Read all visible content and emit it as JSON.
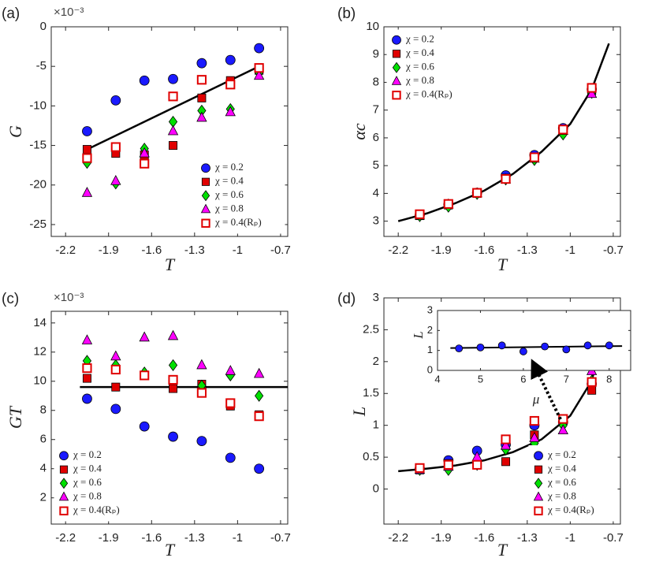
{
  "chart_data": [
    {
      "type": "scatter",
      "label": "(a)",
      "y_multiplier": "×10⁻³",
      "xlabel": "T",
      "ylabel": "G",
      "xlim": [
        -2.3,
        -0.65
      ],
      "ylim": [
        -26.5,
        0
      ],
      "xticks": [
        -2.2,
        -1.9,
        -1.6,
        -1.3,
        -1,
        -0.7
      ],
      "yticks": [
        0,
        -5,
        -10,
        -15,
        -20,
        -25
      ],
      "legend": "lower right",
      "x": [
        -2.05,
        -1.85,
        -1.65,
        -1.45,
        -1.25,
        -1.05,
        -0.85
      ],
      "series": [
        {
          "name": "χ = 0.2",
          "color": "#1a1aff",
          "marker": "o",
          "values": [
            -13.2,
            -9.3,
            -6.8,
            -6.6,
            -4.6,
            -4.2,
            -2.7
          ]
        },
        {
          "name": "χ = 0.4",
          "color": "#e00000",
          "marker": "s",
          "values": [
            -15.5,
            -16.0,
            -16.2,
            -15.0,
            -9.0,
            -6.8,
            -5.5
          ]
        },
        {
          "name": "χ = 0.6",
          "color": "#00e000",
          "marker": "d",
          "values": [
            -17.2,
            -19.8,
            -15.4,
            -12.0,
            -10.6,
            -10.4,
            -5.8
          ]
        },
        {
          "name": "χ = 0.8",
          "color": "#ff00ff",
          "marker": "^",
          "values": [
            -21.0,
            -19.5,
            -16.0,
            -13.2,
            -11.5,
            -10.8,
            -6.2
          ]
        },
        {
          "name": "χ = 0.4(Rₚ)",
          "color": "#e00000",
          "marker": "s",
          "filled": false,
          "values": [
            -16.6,
            -15.2,
            -17.3,
            -8.8,
            -6.7,
            -7.3,
            -5.2
          ]
        }
      ],
      "fit": {
        "x": [
          -2.05,
          -0.85
        ],
        "values": [
          -15.5,
          -5.0
        ]
      }
    },
    {
      "type": "scatter",
      "label": "(b)",
      "xlabel": "T",
      "ylabel": "αc",
      "xlim": [
        -2.3,
        -0.65
      ],
      "ylim": [
        2.45,
        10
      ],
      "xticks": [
        -2.2,
        -1.9,
        -1.6,
        -1.3,
        -1,
        -0.7
      ],
      "yticks": [
        3,
        4,
        5,
        6,
        7,
        8,
        9,
        10
      ],
      "legend": "upper left",
      "x": [
        -2.05,
        -1.85,
        -1.65,
        -1.45,
        -1.25,
        -1.05,
        -0.85
      ],
      "series": [
        {
          "name": "χ = 0.2",
          "color": "#1a1aff",
          "marker": "o",
          "values": [
            3.22,
            3.6,
            4.02,
            4.65,
            5.38,
            6.35,
            7.75
          ]
        },
        {
          "name": "χ = 0.4",
          "color": "#e00000",
          "marker": "s",
          "values": [
            3.2,
            3.58,
            4.0,
            4.55,
            5.3,
            6.3,
            7.7
          ]
        },
        {
          "name": "χ = 0.6",
          "color": "#00e000",
          "marker": "d",
          "values": [
            3.18,
            3.52,
            3.98,
            4.5,
            5.2,
            6.12,
            7.62
          ]
        },
        {
          "name": "χ = 0.8",
          "color": "#ff00ff",
          "marker": "^",
          "values": [
            3.2,
            3.6,
            4.0,
            4.5,
            5.25,
            6.25,
            7.58
          ]
        },
        {
          "name": "χ = 0.4(Rₚ)",
          "color": "#e00000",
          "marker": "s",
          "filled": false,
          "values": [
            3.25,
            3.62,
            4.02,
            4.52,
            5.3,
            6.3,
            7.8
          ]
        }
      ],
      "fit": {
        "x": [
          -2.2,
          -2.0,
          -1.8,
          -1.6,
          -1.4,
          -1.2,
          -1.0,
          -0.85,
          -0.73
        ],
        "values": [
          3.0,
          3.28,
          3.65,
          4.1,
          4.7,
          5.5,
          6.5,
          7.75,
          9.4
        ]
      }
    },
    {
      "type": "scatter",
      "label": "(c)",
      "y_multiplier": "×10⁻³",
      "xlabel": "T",
      "ylabel": "GT",
      "xlim": [
        -2.3,
        -0.65
      ],
      "ylim": [
        0.2,
        14.8
      ],
      "xticks": [
        -2.2,
        -1.9,
        -1.6,
        -1.3,
        -1,
        -0.7
      ],
      "yticks": [
        2,
        4,
        6,
        8,
        10,
        12,
        14
      ],
      "legend": "lower left",
      "x": [
        -2.05,
        -1.85,
        -1.65,
        -1.45,
        -1.25,
        -1.05,
        -0.85
      ],
      "series": [
        {
          "name": "χ = 0.2",
          "color": "#1a1aff",
          "marker": "o",
          "values": [
            8.8,
            8.1,
            6.9,
            6.2,
            5.9,
            4.75,
            4.0
          ]
        },
        {
          "name": "χ = 0.4",
          "color": "#e00000",
          "marker": "s",
          "values": [
            10.2,
            9.6,
            10.4,
            9.5,
            9.8,
            8.3,
            7.7
          ]
        },
        {
          "name": "χ = 0.6",
          "color": "#00e000",
          "marker": "d",
          "values": [
            11.4,
            11.1,
            10.6,
            11.1,
            9.7,
            10.4,
            9.0
          ]
        },
        {
          "name": "χ = 0.8",
          "color": "#ff00ff",
          "marker": "^",
          "values": [
            12.8,
            11.7,
            13.0,
            13.1,
            11.1,
            10.7,
            10.5
          ]
        },
        {
          "name": "χ = 0.4(Rₚ)",
          "color": "#e00000",
          "marker": "s",
          "filled": false,
          "values": [
            10.9,
            10.8,
            10.4,
            10.1,
            9.2,
            8.5,
            7.6
          ]
        }
      ],
      "fit": {
        "x": [
          -2.1,
          -0.65
        ],
        "values": [
          9.6,
          9.6
        ]
      }
    },
    {
      "type": "scatter",
      "label": "(d)",
      "xlabel": "T",
      "ylabel": "L",
      "xlim": [
        -2.3,
        -0.65
      ],
      "ylim": [
        -0.55,
        3
      ],
      "xticks": [
        -2.2,
        -1.9,
        -1.6,
        -1.3,
        -1,
        -0.7
      ],
      "yticks": [
        0,
        0.5,
        1,
        1.5,
        2,
        2.5,
        3
      ],
      "legend": "lower right",
      "x": [
        -2.05,
        -1.85,
        -1.65,
        -1.45,
        -1.25,
        -1.05,
        -0.85
      ],
      "series": [
        {
          "name": "χ = 0.2",
          "color": "#1a1aff",
          "marker": "o",
          "values": [
            0.32,
            0.45,
            0.6,
            0.7,
            1.0,
            1.05,
            1.65
          ]
        },
        {
          "name": "χ = 0.4",
          "color": "#e00000",
          "marker": "s",
          "values": [
            0.3,
            0.4,
            0.38,
            0.43,
            0.85,
            1.1,
            1.55
          ]
        },
        {
          "name": "χ = 0.6",
          "color": "#00e000",
          "marker": "d",
          "values": [
            0.3,
            0.3,
            0.38,
            0.62,
            0.72,
            1.0,
            1.7
          ]
        },
        {
          "name": "χ = 0.8",
          "color": "#ff00ff",
          "marker": "^",
          "values": [
            0.3,
            0.35,
            0.5,
            0.68,
            0.8,
            0.92,
            1.85
          ]
        },
        {
          "name": "χ = 0.4(Rₚ)",
          "color": "#e00000",
          "marker": "s",
          "filled": false,
          "values": [
            0.33,
            0.38,
            0.38,
            0.78,
            1.07,
            1.1,
            1.68
          ]
        }
      ],
      "fit": {
        "x": [
          -2.2,
          -2.0,
          -1.8,
          -1.6,
          -1.4,
          -1.2,
          -1.0,
          -0.85,
          -0.73
        ],
        "values": [
          0.28,
          0.32,
          0.37,
          0.45,
          0.58,
          0.78,
          1.15,
          1.7,
          2.8
        ]
      }
    },
    {
      "type": "scatter",
      "xlabel": "μ",
      "ylabel": "L",
      "xlim": [
        4,
        8.5
      ],
      "ylim": [
        0,
        3
      ],
      "xticks": [
        4,
        5,
        6,
        7,
        8
      ],
      "yticks": [
        0,
        1,
        2,
        3
      ],
      "x": [
        4.5,
        5,
        5.5,
        6,
        6.5,
        7,
        7.5,
        8
      ],
      "series": [
        {
          "color": "#1a1aff",
          "marker": "o",
          "small": true,
          "values": [
            1.1,
            1.15,
            1.25,
            0.95,
            1.2,
            1.05,
            1.25,
            1.25
          ]
        }
      ],
      "fit": {
        "x": [
          4.3,
          8.3
        ],
        "values": [
          1.12,
          1.22
        ]
      }
    }
  ]
}
